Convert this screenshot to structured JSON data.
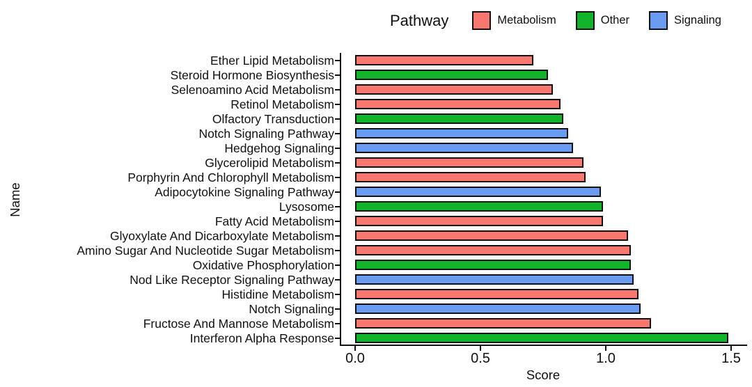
{
  "chart_data": {
    "type": "bar",
    "orientation": "horizontal",
    "legend": {
      "title": "Pathway",
      "position": "top",
      "entries": [
        {
          "label": "Metabolism",
          "color": "#F8786F"
        },
        {
          "label": "Other",
          "color": "#10B32A"
        },
        {
          "label": "Signaling",
          "color": "#6A9BF2"
        }
      ]
    },
    "xlabel": "Score",
    "ylabel": "Name",
    "x_ticks": [
      {
        "label": "0.0",
        "value": 0.0
      },
      {
        "label": "0.5",
        "value": 0.5
      },
      {
        "label": "1.0",
        "value": 1.0
      },
      {
        "label": "1.5",
        "value": 1.5
      }
    ],
    "xlim": [
      0,
      1.55
    ],
    "grid": false,
    "bar_border_color": "#111111",
    "rows": [
      {
        "name": "Ether Lipid Metabolism",
        "group": "Metabolism",
        "value": 0.71
      },
      {
        "name": "Steroid Hormone Biosynthesis",
        "group": "Other",
        "value": 0.77
      },
      {
        "name": "Selenoamino Acid Metabolism",
        "group": "Metabolism",
        "value": 0.79
      },
      {
        "name": "Retinol Metabolism",
        "group": "Metabolism",
        "value": 0.82
      },
      {
        "name": "Olfactory Transduction",
        "group": "Other",
        "value": 0.83
      },
      {
        "name": "Notch Signaling Pathway",
        "group": "Signaling",
        "value": 0.85
      },
      {
        "name": "Hedgehog Signaling",
        "group": "Signaling",
        "value": 0.87
      },
      {
        "name": "Glycerolipid Metabolism",
        "group": "Metabolism",
        "value": 0.91
      },
      {
        "name": "Porphyrin And Chlorophyll Metabolism",
        "group": "Metabolism",
        "value": 0.92
      },
      {
        "name": "Adipocytokine Signaling Pathway",
        "group": "Signaling",
        "value": 0.98
      },
      {
        "name": "Lysosome",
        "group": "Other",
        "value": 0.99
      },
      {
        "name": "Fatty Acid Metabolism",
        "group": "Metabolism",
        "value": 0.99
      },
      {
        "name": "Glyoxylate And Dicarboxylate Metabolism",
        "group": "Metabolism",
        "value": 1.09
      },
      {
        "name": "Amino Sugar And Nucleotide Sugar Metabolism",
        "group": "Metabolism",
        "value": 1.1
      },
      {
        "name": "Oxidative Phosphorylation",
        "group": "Other",
        "value": 1.1
      },
      {
        "name": "Nod Like Receptor Signaling Pathway",
        "group": "Signaling",
        "value": 1.11
      },
      {
        "name": "Histidine Metabolism",
        "group": "Metabolism",
        "value": 1.13
      },
      {
        "name": "Notch Signaling",
        "group": "Signaling",
        "value": 1.14
      },
      {
        "name": "Fructose And Mannose Metabolism",
        "group": "Metabolism",
        "value": 1.18
      },
      {
        "name": "Interferon Alpha Response",
        "group": "Other",
        "value": 1.49
      }
    ]
  }
}
